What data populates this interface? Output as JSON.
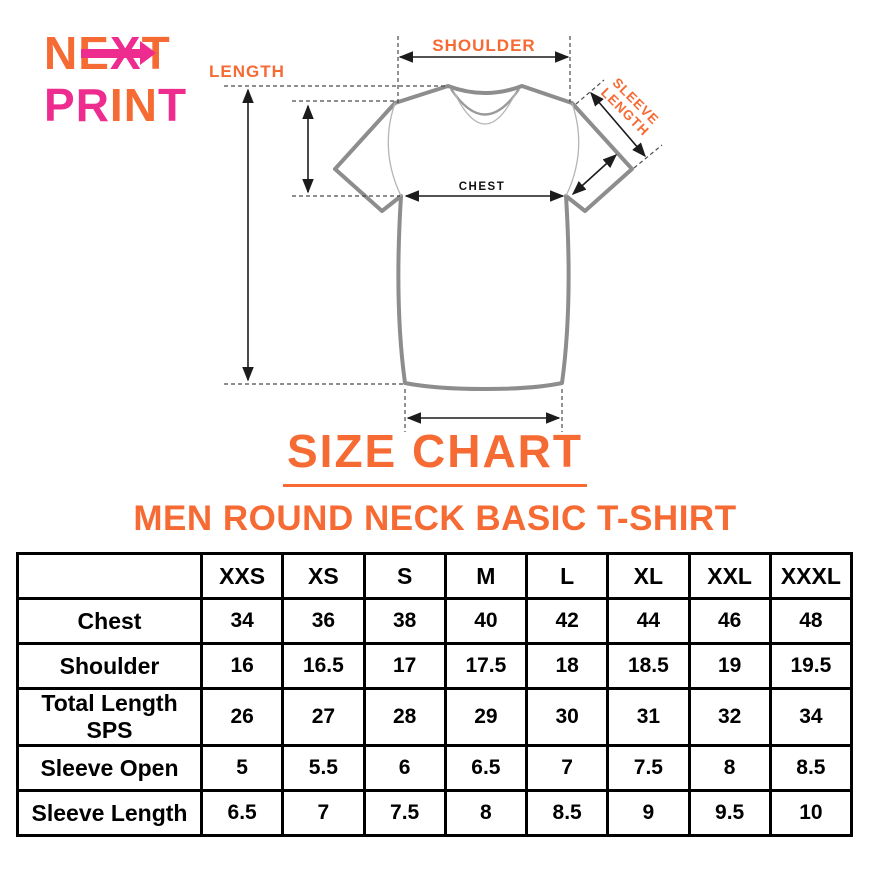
{
  "logo": {
    "line1": {
      "text": "NEXT",
      "colors": [
        "orange",
        "orange",
        "pink",
        "orange"
      ]
    },
    "line2": {
      "text": "PRINT",
      "colors": [
        "pink",
        "pink",
        "orange",
        "orange",
        "pink"
      ]
    }
  },
  "diagram": {
    "labels": {
      "shoulder": "SHOULDER",
      "length": "LENGTH",
      "chest": "CHEST",
      "sleeve_line1": "SLEEVE",
      "sleeve_line2": "LENGTH"
    }
  },
  "title": "SIZE CHART",
  "subtitle": "MEN ROUND NECK BASIC T-SHIRT",
  "colors": {
    "orange": "#f66a33",
    "pink": "#ee2b8e",
    "shirt_outline": "#8d8d8d",
    "table_border": "#000000"
  },
  "chart_data": {
    "type": "table",
    "title": "SIZE CHART",
    "subtitle": "MEN ROUND NECK BASIC T-SHIRT",
    "columns": [
      "",
      "XXS",
      "XS",
      "S",
      "M",
      "L",
      "XL",
      "XXL",
      "XXXL"
    ],
    "rows": [
      {
        "label": "Chest",
        "values": [
          "34",
          "36",
          "38",
          "40",
          "42",
          "44",
          "46",
          "48"
        ]
      },
      {
        "label": "Shoulder",
        "values": [
          "16",
          "16.5",
          "17",
          "17.5",
          "18",
          "18.5",
          "19",
          "19.5"
        ]
      },
      {
        "label": "Total Length SPS",
        "values": [
          "26",
          "27",
          "28",
          "29",
          "30",
          "31",
          "32",
          "34"
        ]
      },
      {
        "label": "Sleeve Open",
        "values": [
          "5",
          "5.5",
          "6",
          "6.5",
          "7",
          "7.5",
          "8",
          "8.5"
        ]
      },
      {
        "label": "Sleeve Length",
        "values": [
          "6.5",
          "7",
          "7.5",
          "8",
          "8.5",
          "9",
          "9.5",
          "10"
        ]
      }
    ]
  }
}
